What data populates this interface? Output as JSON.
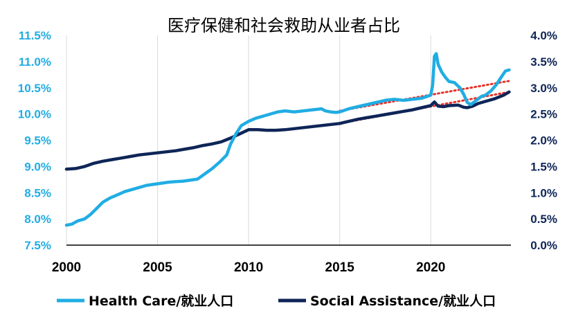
{
  "chart_data": {
    "type": "line",
    "title": "医疗保健和社会救助从业者占比",
    "x_range": [
      2000,
      2024.4
    ],
    "x_ticks": [
      2000,
      2005,
      2010,
      2015,
      2020
    ],
    "y_left": {
      "range": [
        7.5,
        11.5
      ],
      "ticks": [
        "7.5%",
        "8.0%",
        "8.5%",
        "9.0%",
        "9.5%",
        "10.0%",
        "10.5%",
        "11.0%",
        "11.5%"
      ],
      "color": "#20ADE3"
    },
    "y_right": {
      "range": [
        0.0,
        4.0
      ],
      "ticks": [
        "0.0%",
        "0.5%",
        "1.0%",
        "1.5%",
        "2.0%",
        "2.5%",
        "3.0%",
        "3.5%",
        "4.0%"
      ],
      "color": "#0E2557"
    },
    "grid": "vertical",
    "legend_position": "bottom",
    "series": [
      {
        "name": "Health Care/就业人口",
        "axis": "left",
        "color": "#20ADE3",
        "points": [
          [
            2000.0,
            7.88
          ],
          [
            2000.3,
            7.9
          ],
          [
            2000.6,
            7.96
          ],
          [
            2001.0,
            8.0
          ],
          [
            2001.3,
            8.08
          ],
          [
            2001.6,
            8.18
          ],
          [
            2002.0,
            8.32
          ],
          [
            2002.4,
            8.4
          ],
          [
            2002.8,
            8.46
          ],
          [
            2003.2,
            8.52
          ],
          [
            2003.6,
            8.56
          ],
          [
            2004.0,
            8.6
          ],
          [
            2004.4,
            8.64
          ],
          [
            2004.8,
            8.66
          ],
          [
            2005.2,
            8.68
          ],
          [
            2005.6,
            8.7
          ],
          [
            2006.0,
            8.71
          ],
          [
            2006.4,
            8.72
          ],
          [
            2006.8,
            8.74
          ],
          [
            2007.2,
            8.76
          ],
          [
            2007.6,
            8.86
          ],
          [
            2008.0,
            8.96
          ],
          [
            2008.4,
            9.08
          ],
          [
            2008.8,
            9.22
          ],
          [
            2009.0,
            9.42
          ],
          [
            2009.3,
            9.62
          ],
          [
            2009.6,
            9.78
          ],
          [
            2010.0,
            9.86
          ],
          [
            2010.4,
            9.92
          ],
          [
            2010.8,
            9.96
          ],
          [
            2011.2,
            10.0
          ],
          [
            2011.6,
            10.04
          ],
          [
            2012.0,
            10.06
          ],
          [
            2012.5,
            10.04
          ],
          [
            2013.0,
            10.06
          ],
          [
            2013.5,
            10.08
          ],
          [
            2014.0,
            10.1
          ],
          [
            2014.2,
            10.06
          ],
          [
            2014.5,
            10.04
          ],
          [
            2014.8,
            10.03
          ],
          [
            2015.0,
            10.04
          ],
          [
            2015.5,
            10.1
          ],
          [
            2016.0,
            10.14
          ],
          [
            2016.5,
            10.18
          ],
          [
            2017.0,
            10.22
          ],
          [
            2017.5,
            10.26
          ],
          [
            2018.0,
            10.28
          ],
          [
            2018.5,
            10.26
          ],
          [
            2019.0,
            10.28
          ],
          [
            2019.5,
            10.3
          ],
          [
            2020.0,
            10.36
          ],
          [
            2020.1,
            10.55
          ],
          [
            2020.2,
            11.1
          ],
          [
            2020.3,
            11.15
          ],
          [
            2020.4,
            10.95
          ],
          [
            2020.6,
            10.8
          ],
          [
            2020.8,
            10.7
          ],
          [
            2021.0,
            10.62
          ],
          [
            2021.3,
            10.6
          ],
          [
            2021.6,
            10.5
          ],
          [
            2021.8,
            10.38
          ],
          [
            2022.0,
            10.22
          ],
          [
            2022.2,
            10.18
          ],
          [
            2022.5,
            10.26
          ],
          [
            2022.8,
            10.34
          ],
          [
            2023.0,
            10.36
          ],
          [
            2023.3,
            10.44
          ],
          [
            2023.6,
            10.56
          ],
          [
            2023.9,
            10.72
          ],
          [
            2024.1,
            10.82
          ],
          [
            2024.3,
            10.84
          ]
        ]
      },
      {
        "name": "Social Assistance/就业人口",
        "axis": "right",
        "color": "#0E2557",
        "points": [
          [
            2000.0,
            1.45
          ],
          [
            2000.5,
            1.46
          ],
          [
            2001.0,
            1.5
          ],
          [
            2001.5,
            1.56
          ],
          [
            2002.0,
            1.6
          ],
          [
            2002.5,
            1.63
          ],
          [
            2003.0,
            1.66
          ],
          [
            2003.5,
            1.69
          ],
          [
            2004.0,
            1.72
          ],
          [
            2004.5,
            1.74
          ],
          [
            2005.0,
            1.76
          ],
          [
            2005.5,
            1.78
          ],
          [
            2006.0,
            1.8
          ],
          [
            2006.5,
            1.83
          ],
          [
            2007.0,
            1.86
          ],
          [
            2007.5,
            1.9
          ],
          [
            2008.0,
            1.93
          ],
          [
            2008.5,
            1.97
          ],
          [
            2009.0,
            2.04
          ],
          [
            2009.5,
            2.12
          ],
          [
            2010.0,
            2.2
          ],
          [
            2010.5,
            2.2
          ],
          [
            2011.0,
            2.19
          ],
          [
            2011.5,
            2.19
          ],
          [
            2012.0,
            2.2
          ],
          [
            2012.5,
            2.22
          ],
          [
            2013.0,
            2.24
          ],
          [
            2013.5,
            2.26
          ],
          [
            2014.0,
            2.28
          ],
          [
            2014.5,
            2.3
          ],
          [
            2015.0,
            2.32
          ],
          [
            2015.5,
            2.36
          ],
          [
            2016.0,
            2.4
          ],
          [
            2016.5,
            2.43
          ],
          [
            2017.0,
            2.46
          ],
          [
            2017.5,
            2.49
          ],
          [
            2018.0,
            2.52
          ],
          [
            2018.5,
            2.55
          ],
          [
            2019.0,
            2.58
          ],
          [
            2019.5,
            2.62
          ],
          [
            2020.0,
            2.66
          ],
          [
            2020.2,
            2.73
          ],
          [
            2020.4,
            2.65
          ],
          [
            2020.7,
            2.64
          ],
          [
            2021.0,
            2.66
          ],
          [
            2021.5,
            2.67
          ],
          [
            2021.8,
            2.63
          ],
          [
            2022.0,
            2.62
          ],
          [
            2022.3,
            2.65
          ],
          [
            2022.6,
            2.7
          ],
          [
            2023.0,
            2.74
          ],
          [
            2023.5,
            2.79
          ],
          [
            2024.0,
            2.86
          ],
          [
            2024.3,
            2.92
          ]
        ]
      }
    ],
    "trendlines": [
      {
        "axis": "left",
        "color": "#E8302A",
        "style": "dotted",
        "from": [
          2015.0,
          10.06
        ],
        "to": [
          2024.3,
          10.63
        ]
      },
      {
        "axis": "right",
        "color": "#E8302A",
        "style": "dotted",
        "from": [
          2015.0,
          2.32
        ],
        "to": [
          2024.3,
          2.92
        ]
      }
    ]
  }
}
